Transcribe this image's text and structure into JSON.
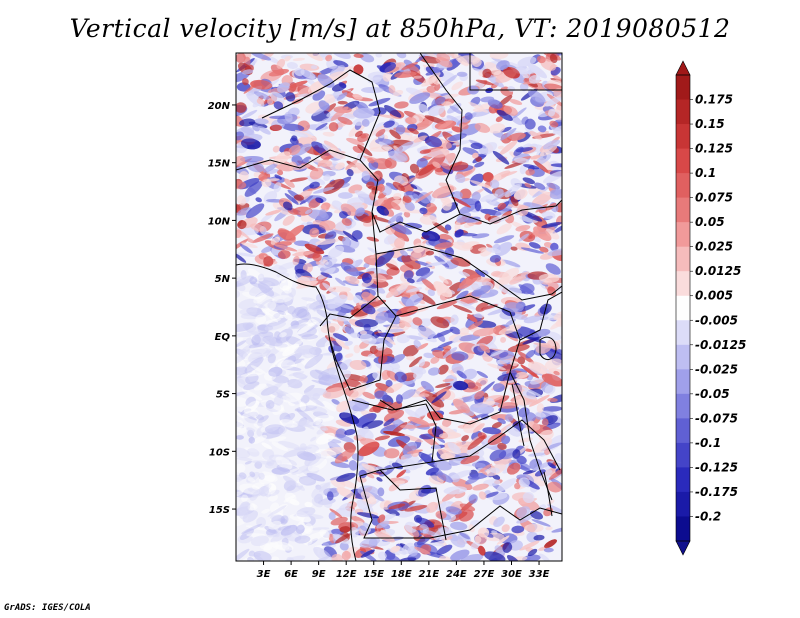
{
  "title": "Vertical velocity [m/s] at 850hPa, VT: 2019080512",
  "credit": "GrADS: IGES/COLA",
  "map": {
    "lon_ticks": [
      "3E",
      "6E",
      "9E",
      "12E",
      "15E",
      "18E",
      "21E",
      "24E",
      "27E",
      "30E",
      "33E"
    ],
    "lat_ticks": [
      "20N",
      "15N",
      "10N",
      "5N",
      "EQ",
      "5S",
      "10S",
      "15S"
    ]
  },
  "chart_data": {
    "type": "heatmap",
    "title": "Vertical velocity [m/s] at 850hPa, VT: 2019080512",
    "variable": "Vertical velocity",
    "units": "m/s",
    "level": "850hPa",
    "valid_time": "2019080512",
    "lon_range": [
      0.0,
      35.5
    ],
    "lat_range": [
      -19.5,
      24.5
    ],
    "colorbar": {
      "levels": [
        "0.175",
        "0.15",
        "0.125",
        "0.1",
        "0.075",
        "0.05",
        "0.025",
        "0.0125",
        "0.005",
        "-0.005",
        "-0.0125",
        "-0.025",
        "-0.05",
        "-0.075",
        "-0.1",
        "-0.125",
        "-0.175",
        "-0.2"
      ],
      "colors": [
        "#a11a1a",
        "#b52626",
        "#c83535",
        "#d84848",
        "#e06060",
        "#e87a7a",
        "#f19a9a",
        "#f6bcbc",
        "#fadcdc",
        "#fefefe",
        "#dcdcf8",
        "#bebef2",
        "#a0a0ea",
        "#8080e0",
        "#6060d4",
        "#4444c8",
        "#2a2abc",
        "#1a1aa8",
        "#0c0c90"
      ],
      "overflow_top": "#a01818",
      "overflow_bottom": "#10108c"
    }
  }
}
